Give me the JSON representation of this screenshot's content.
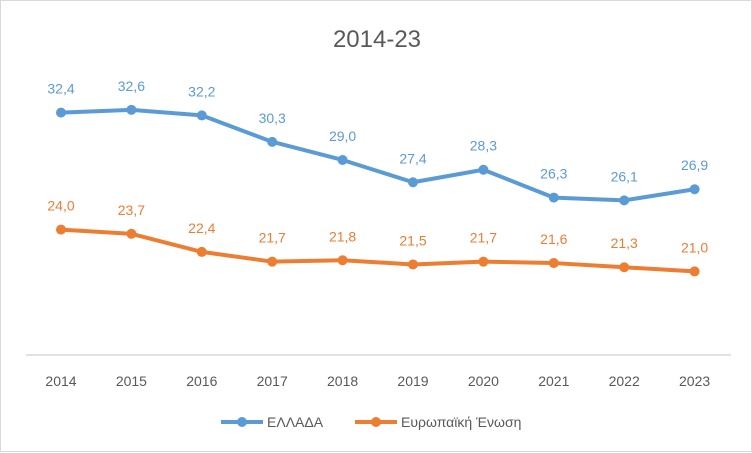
{
  "chart_data": {
    "type": "line",
    "title": "2014-23",
    "categories": [
      "2014",
      "2015",
      "2016",
      "2017",
      "2018",
      "2019",
      "2020",
      "2021",
      "2022",
      "2023"
    ],
    "series": [
      {
        "name": "ΕΛΛΑΔΑ",
        "color": "#5b9bd5",
        "values": [
          32.4,
          32.6,
          32.2,
          30.3,
          29.0,
          27.4,
          28.3,
          26.3,
          26.1,
          26.9
        ],
        "labels": [
          "32,4",
          "32,6",
          "32,2",
          "30,3",
          "29,0",
          "27,4",
          "28,3",
          "26,3",
          "26,1",
          "26,9"
        ]
      },
      {
        "name": "Ευρωπαϊκή Ένωση",
        "color": "#ed7d31",
        "values": [
          24.0,
          23.7,
          22.4,
          21.7,
          21.8,
          21.5,
          21.7,
          21.6,
          21.3,
          21.0
        ],
        "labels": [
          "24,0",
          "23,7",
          "22,4",
          "21,7",
          "21,8",
          "21,5",
          "21,7",
          "21,6",
          "21,3",
          "21,0"
        ]
      }
    ],
    "ylim": [
      15,
      35
    ],
    "y_axis_visible": false,
    "grid": false,
    "legend": "bottom"
  }
}
